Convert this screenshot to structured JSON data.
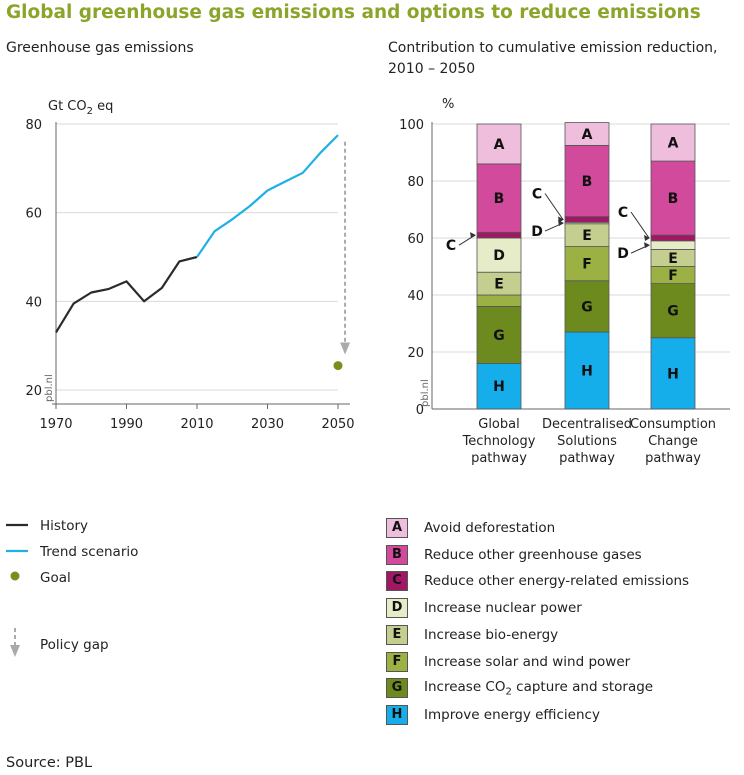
{
  "title": "Global greenhouse gas emissions and options to reduce emissions",
  "source": "Source: PBL",
  "watermark": "pbl.nl",
  "chart_data": [
    {
      "type": "line",
      "subtitle": "Greenhouse gas emissions",
      "unit_prefix": "Gt CO",
      "unit_sub": "2",
      "unit_suffix": " eq",
      "xlim": [
        1970,
        2050
      ],
      "ylim": [
        20,
        80
      ],
      "x_ticks": [
        "1970",
        "1990",
        "2010",
        "2030",
        "2050"
      ],
      "y_ticks": [
        "20",
        "40",
        "60",
        "80"
      ],
      "grid": true,
      "series": [
        {
          "name": "History",
          "color": "#2b2b2b",
          "points": [
            [
              1970,
              33
            ],
            [
              1975,
              39.5
            ],
            [
              1980,
              42
            ],
            [
              1985,
              42.8
            ],
            [
              1990,
              44.5
            ],
            [
              1995,
              40
            ],
            [
              2000,
              43
            ],
            [
              2005,
              49
            ],
            [
              2010,
              50
            ]
          ]
        },
        {
          "name": "Trend scenario",
          "color": "#1fb0e6",
          "points": [
            [
              2010,
              50
            ],
            [
              2015,
              55.8
            ],
            [
              2020,
              58.5
            ],
            [
              2025,
              61.5
            ],
            [
              2030,
              65
            ],
            [
              2035,
              67
            ],
            [
              2040,
              69
            ],
            [
              2045,
              73.5
            ],
            [
              2050,
              77.5
            ]
          ]
        }
      ],
      "goal": {
        "name": "Goal",
        "x": 2050,
        "y": 25.5,
        "color": "#7a8e1e"
      },
      "policy_gap": {
        "name": "Policy gap",
        "x": 2052,
        "y_from": 76,
        "y_to": 28,
        "color": "#aaaaaa"
      }
    },
    {
      "type": "bar",
      "stacked": true,
      "subtitle": "Contribution to cumulative emission reduction, 2010 – 2050",
      "ylabel": "%",
      "ylim": [
        0,
        100
      ],
      "y_ticks": [
        "0",
        "20",
        "40",
        "60",
        "80",
        "100"
      ],
      "grid": true,
      "categories": [
        [
          "Global",
          "Technology",
          "pathway"
        ],
        [
          "Decentralised",
          "Solutions",
          "pathway"
        ],
        [
          "Consumption",
          "Change",
          "pathway"
        ]
      ],
      "series": [
        {
          "key": "H",
          "name": "Improve energy efficiency",
          "color": "#16aeea",
          "values": [
            16,
            27,
            25
          ]
        },
        {
          "key": "G",
          "name": "Increase CO2 capture and storage",
          "color": "#6d8a1f",
          "values": [
            20,
            18,
            19
          ]
        },
        {
          "key": "F",
          "name": "Increase solar and wind power",
          "color": "#9bb144",
          "values": [
            4,
            12,
            6
          ]
        },
        {
          "key": "E",
          "name": "Increase bio-energy",
          "color": "#c3ce8f",
          "values": [
            8,
            8,
            6
          ]
        },
        {
          "key": "D",
          "name": "Increase nuclear power",
          "color": "#e5ecc7",
          "values": [
            12,
            0.5,
            3
          ]
        },
        {
          "key": "C",
          "name": "Reduce other energy-related emissions",
          "color": "#a01763",
          "values": [
            2,
            2,
            2
          ]
        },
        {
          "key": "B",
          "name": "Reduce other greenhouse gases",
          "color": "#d14a9c",
          "values": [
            24,
            25,
            26
          ]
        },
        {
          "key": "A",
          "name": "Avoid deforestation",
          "color": "#f0bedd",
          "values": [
            14,
            8,
            13
          ]
        }
      ],
      "callouts": [
        {
          "key": "C",
          "bar": 0,
          "side": "left"
        },
        {
          "key": "C",
          "bar": 1,
          "side": "left"
        },
        {
          "key": "D",
          "bar": 1,
          "side": "left"
        },
        {
          "key": "C",
          "bar": 2,
          "side": "left"
        },
        {
          "key": "D",
          "bar": 2,
          "side": "left"
        }
      ]
    }
  ],
  "legend_left": [
    {
      "type": "line",
      "label": "History",
      "color": "#2b2b2b"
    },
    {
      "type": "line",
      "label": "Trend scenario",
      "color": "#1fb0e6"
    },
    {
      "type": "dot",
      "label": "Goal",
      "color": "#7a8e1e"
    },
    {
      "type": "arrow",
      "label": "Policy gap",
      "color": "#aaaaaa"
    }
  ],
  "legend_right": [
    {
      "key": "A",
      "label": "Avoid deforestation",
      "color": "#f0bedd"
    },
    {
      "key": "B",
      "label": "Reduce other greenhouse gases",
      "color": "#d14a9c"
    },
    {
      "key": "C",
      "label": "Reduce other energy-related emissions",
      "color": "#a01763"
    },
    {
      "key": "D",
      "label": "Increase nuclear power",
      "color": "#e5ecc7"
    },
    {
      "key": "E",
      "label": "Increase bio-energy",
      "color": "#c3ce8f"
    },
    {
      "key": "F",
      "label": "Increase solar and wind power",
      "color": "#9bb144"
    },
    {
      "key": "G",
      "label_prefix": "Increase CO",
      "label_sub": "2",
      "label_suffix": " capture and storage",
      "color": "#6d8a1f"
    },
    {
      "key": "H",
      "label": "Improve energy efficiency",
      "color": "#16aeea"
    }
  ]
}
